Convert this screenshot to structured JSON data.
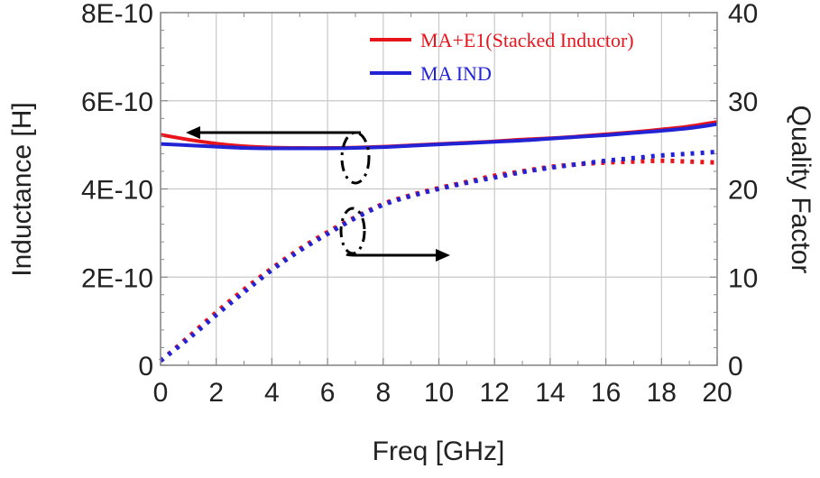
{
  "chart_data": {
    "type": "line",
    "xlabel": "Freq [GHz]",
    "ylabel_left": "Inductance [H]",
    "ylabel_right": "Quality Factor",
    "x_ticks": [
      "0",
      "2",
      "4",
      "6",
      "8",
      "10",
      "12",
      "14",
      "16",
      "18",
      "20"
    ],
    "y_left_ticks": [
      "0",
      "2E-10",
      "4E-10",
      "6E-10",
      "8E-10"
    ],
    "y_right_ticks": [
      "0",
      "10",
      "20",
      "30",
      "40"
    ],
    "xlim": [
      0,
      20
    ],
    "ylim_left": [
      0,
      8e-10
    ],
    "ylim_right": [
      0,
      40
    ],
    "grid": true,
    "legend_position": "top-right",
    "x": [
      0,
      1,
      2,
      3,
      4,
      5,
      6,
      7,
      8,
      9,
      10,
      11,
      12,
      13,
      14,
      15,
      16,
      17,
      18,
      19,
      20
    ],
    "series": [
      {
        "name": "MA+E1(Stacked Inductor)",
        "axis": "left",
        "style": "solid",
        "color": "#e8141c",
        "values": [
          5.23e-10,
          5.12e-10,
          5.03e-10,
          4.97e-10,
          4.94e-10,
          4.93e-10,
          4.93e-10,
          4.94e-10,
          4.96e-10,
          4.99e-10,
          5.02e-10,
          5.05e-10,
          5.08e-10,
          5.12e-10,
          5.15e-10,
          5.19e-10,
          5.24e-10,
          5.29e-10,
          5.35e-10,
          5.42e-10,
          5.52e-10
        ]
      },
      {
        "name": "MA IND",
        "axis": "left",
        "style": "solid",
        "color": "#2323d6",
        "values": [
          5.02e-10,
          4.99e-10,
          4.96e-10,
          4.93e-10,
          4.92e-10,
          4.92e-10,
          4.92e-10,
          4.93e-10,
          4.95e-10,
          4.98e-10,
          5.01e-10,
          5.04e-10,
          5.07e-10,
          5.1e-10,
          5.14e-10,
          5.18e-10,
          5.22e-10,
          5.27e-10,
          5.32e-10,
          5.38e-10,
          5.47e-10
        ]
      },
      {
        "name": "MA+E1(Stacked Inductor) Q",
        "axis": "right",
        "style": "dotted",
        "color": "#e8141c",
        "values": [
          0.5,
          3.2,
          6.0,
          8.6,
          11.0,
          13.2,
          15.1,
          16.8,
          18.3,
          19.3,
          20.1,
          20.8,
          21.5,
          22.0,
          22.5,
          22.8,
          23.0,
          23.1,
          23.2,
          23.1,
          23.0
        ]
      },
      {
        "name": "MA IND Q",
        "axis": "right",
        "style": "dotted",
        "color": "#2323d6",
        "values": [
          0.5,
          3.0,
          5.7,
          8.3,
          10.8,
          13.0,
          14.9,
          16.7,
          18.2,
          19.2,
          20.0,
          20.7,
          21.3,
          21.9,
          22.4,
          22.8,
          23.2,
          23.5,
          23.8,
          24.0,
          24.2
        ]
      }
    ]
  }
}
